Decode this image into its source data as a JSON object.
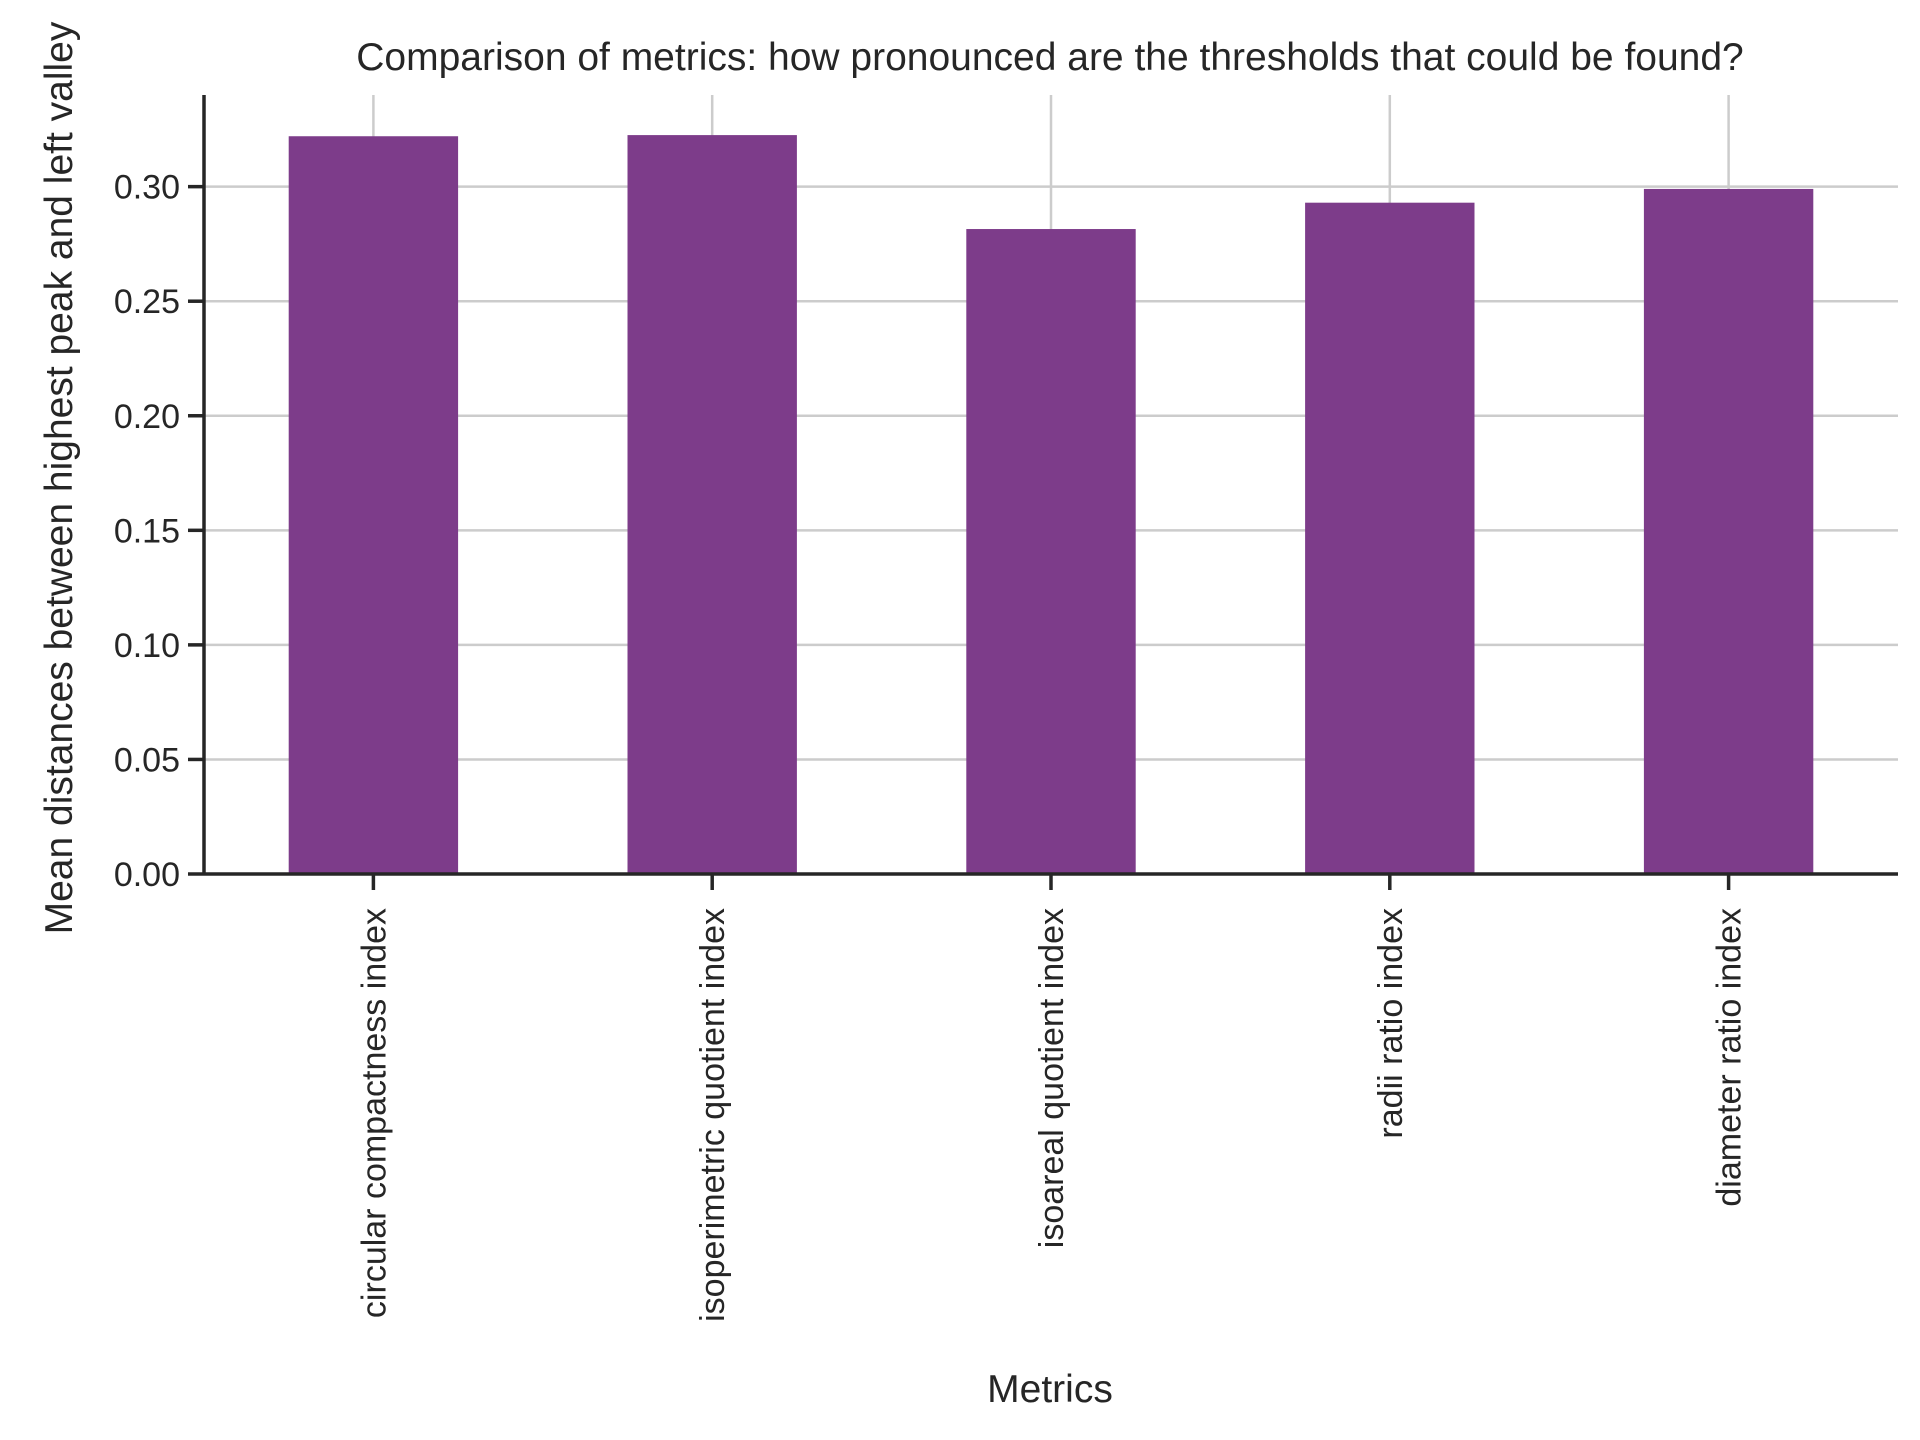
{
  "chart_data": {
    "type": "bar",
    "title": "Comparison of metrics: how pronounced are the thresholds that could be found?",
    "xlabel": "Metrics",
    "ylabel": "Mean distances between highest peak and left valley",
    "categories": [
      "circular compactness index",
      "isoperimetric quotient index",
      "isoareal quotient index",
      "radii ratio index",
      "diameter ratio index"
    ],
    "values": [
      0.322,
      0.3225,
      0.2815,
      0.293,
      0.299
    ],
    "ylim": [
      0,
      0.34
    ],
    "yticks": [
      0.0,
      0.05,
      0.1,
      0.15,
      0.2,
      0.25,
      0.3
    ],
    "ytick_labels": [
      "0.00",
      "0.05",
      "0.10",
      "0.15",
      "0.20",
      "0.25",
      "0.30"
    ],
    "grid": true,
    "bar_color": "#7d3c8a"
  }
}
